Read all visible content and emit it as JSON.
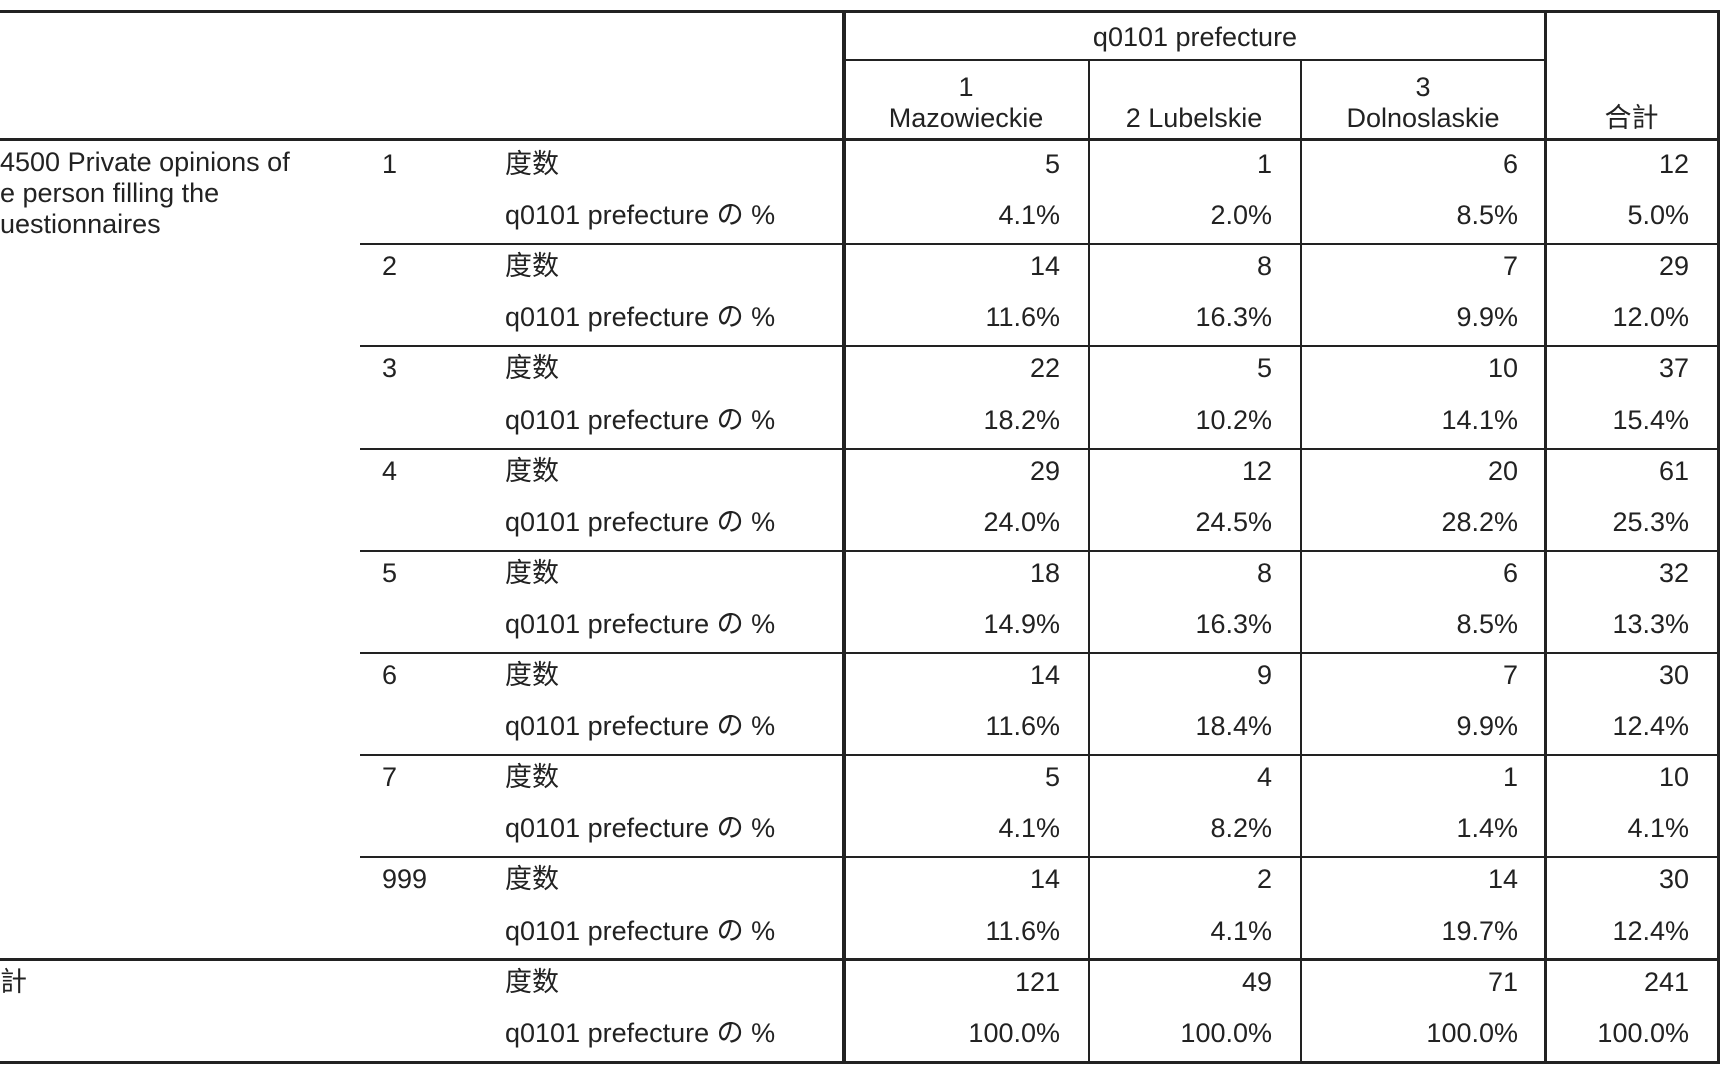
{
  "header": {
    "group": "q0101 prefecture",
    "columns": [
      [
        "1",
        "Mazowieckie"
      ],
      [
        "2 Lubelskie"
      ],
      [
        "3",
        "Dolnoslaskie"
      ],
      [
        "合計"
      ]
    ]
  },
  "row_label": [
    "4500 Private opinions of",
    "e person filling the",
    "uestionnaires"
  ],
  "stat_labels": [
    "度数",
    "q0101 prefecture の %"
  ],
  "groups": [
    {
      "code": "1",
      "count": [
        "5",
        "1",
        "6",
        "12"
      ],
      "percent": [
        "4.1%",
        "2.0%",
        "8.5%",
        "5.0%"
      ]
    },
    {
      "code": "2",
      "count": [
        "14",
        "8",
        "7",
        "29"
      ],
      "percent": [
        "11.6%",
        "16.3%",
        "9.9%",
        "12.0%"
      ]
    },
    {
      "code": "3",
      "count": [
        "22",
        "5",
        "10",
        "37"
      ],
      "percent": [
        "18.2%",
        "10.2%",
        "14.1%",
        "15.4%"
      ]
    },
    {
      "code": "4",
      "count": [
        "29",
        "12",
        "20",
        "61"
      ],
      "percent": [
        "24.0%",
        "24.5%",
        "28.2%",
        "25.3%"
      ]
    },
    {
      "code": "5",
      "count": [
        "18",
        "8",
        "6",
        "32"
      ],
      "percent": [
        "14.9%",
        "16.3%",
        "8.5%",
        "13.3%"
      ]
    },
    {
      "code": "6",
      "count": [
        "14",
        "9",
        "7",
        "30"
      ],
      "percent": [
        "11.6%",
        "18.4%",
        "9.9%",
        "12.4%"
      ]
    },
    {
      "code": "7",
      "count": [
        "5",
        "4",
        "1",
        "10"
      ],
      "percent": [
        "4.1%",
        "8.2%",
        "1.4%",
        "4.1%"
      ]
    },
    {
      "code": "999",
      "count": [
        "14",
        "2",
        "14",
        "30"
      ],
      "percent": [
        "11.6%",
        "4.1%",
        "19.7%",
        "12.4%"
      ]
    }
  ],
  "total": {
    "label": "計",
    "count": [
      "121",
      "49",
      "71",
      "241"
    ],
    "percent": [
      "100.0%",
      "100.0%",
      "100.0%",
      "100.0%"
    ]
  }
}
